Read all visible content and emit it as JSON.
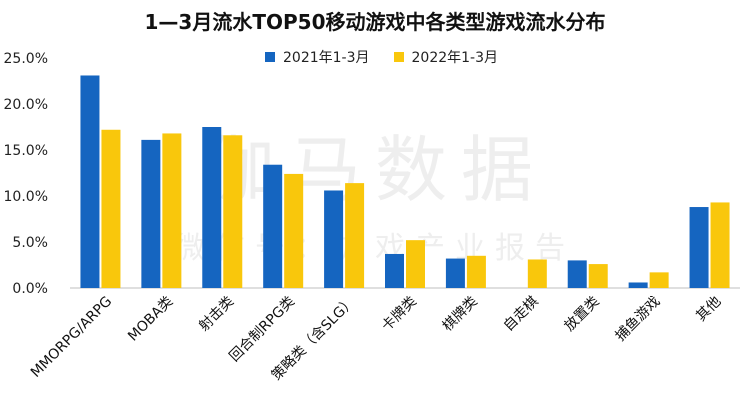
{
  "chart_data": {
    "type": "bar",
    "title": "1—3月流水TOP50移动游戏中各类型游戏流水分布",
    "categories": [
      "MMORPG/ARPG",
      "MOBA类",
      "射击类",
      "回合制RPG类",
      "策略类（含SLG）",
      "卡牌类",
      "棋牌类",
      "自走棋",
      "放置类",
      "捕鱼游戏",
      "其他"
    ],
    "series": [
      {
        "name": "2021年1-3月",
        "values": [
          23.1,
          16.1,
          17.5,
          13.4,
          10.6,
          3.7,
          3.2,
          0.0,
          3.0,
          0.6,
          8.8
        ]
      },
      {
        "name": "2022年1-3月",
        "values": [
          17.2,
          16.8,
          16.6,
          12.4,
          11.4,
          5.2,
          3.5,
          3.1,
          2.6,
          1.7,
          9.3
        ]
      }
    ],
    "ylim": [
      0,
      25
    ],
    "yticks": [
      "0.0%",
      "5.0%",
      "10.0%",
      "15.0%",
      "20.0%",
      "25.0%"
    ],
    "ytick_values": [
      0,
      5,
      10,
      15,
      20,
      25
    ],
    "grid": false,
    "legend_position": "top-center",
    "colors": {
      "series_1": "#1565C0",
      "series_2": "#F9C70C"
    }
  },
  "watermark": {
    "line1": "伽马数据",
    "line2": "微信号：游戏产业报告"
  }
}
